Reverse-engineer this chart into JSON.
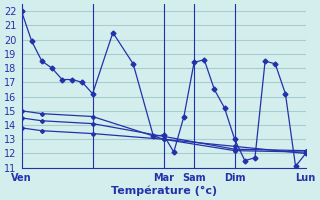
{
  "title": "",
  "xlabel": "Température (°c)",
  "ylabel": "",
  "background_color": "#d4eeee",
  "line_color": "#2233aa",
  "grid_color": "#aacccc",
  "xlim": [
    0,
    28
  ],
  "ylim": [
    11,
    22.5
  ],
  "yticks": [
    11,
    12,
    13,
    14,
    15,
    16,
    17,
    18,
    19,
    20,
    21,
    22
  ],
  "xtick_positions": [
    0,
    7,
    14,
    17,
    21,
    28
  ],
  "xtick_labels": [
    "Ven",
    "",
    "Mar",
    "Sam",
    "Dim",
    "Lun"
  ],
  "series": [
    {
      "x": [
        0,
        1,
        2,
        3,
        4,
        5,
        6,
        7,
        9,
        11,
        13,
        14,
        15,
        16,
        17,
        18,
        19,
        20,
        21,
        22,
        23,
        24,
        25,
        26,
        27,
        28
      ],
      "y": [
        22,
        19.9,
        18.5,
        18.0,
        17.2,
        17.2,
        17.0,
        16.2,
        20.5,
        18.3,
        13.2,
        13.3,
        12.1,
        14.6,
        18.4,
        18.6,
        16.5,
        15.2,
        13.0,
        11.5,
        11.7,
        18.5,
        18.3,
        16.2,
        11.1,
        12.0
      ]
    },
    {
      "x": [
        0,
        2,
        7,
        14,
        21,
        28
      ],
      "y": [
        15.0,
        14.8,
        14.6,
        13.0,
        12.2,
        12.1
      ]
    },
    {
      "x": [
        0,
        2,
        7,
        14,
        21,
        28
      ],
      "y": [
        14.5,
        14.3,
        14.1,
        13.2,
        12.3,
        12.2
      ]
    },
    {
      "x": [
        0,
        2,
        7,
        14,
        21,
        28
      ],
      "y": [
        13.8,
        13.6,
        13.4,
        13.0,
        12.5,
        12.0
      ]
    }
  ],
  "vlines": [
    7,
    14,
    17,
    21
  ]
}
